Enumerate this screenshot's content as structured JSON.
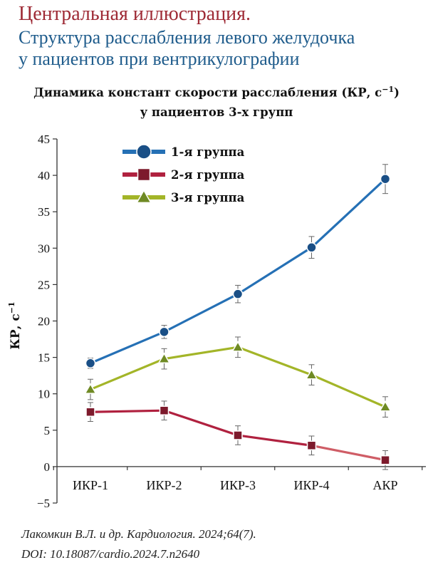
{
  "header": {
    "line1": "Центральная иллюстрация.",
    "line2a": "Структура расслабления левого желудочка",
    "line2b": "у пациентов при вентрикулографии"
  },
  "chart_data": {
    "type": "line",
    "title_line1": "Динамика констант скорости расслабления (КР, с",
    "title_sup": "−1",
    "title_tail": ")",
    "title_line2": "у пациентов 3-х групп",
    "ylabel": "КР, с",
    "ylabel_sup": "−1",
    "categories": [
      "ИКР-1",
      "ИКР-2",
      "ИКР-3",
      "ИКР-4",
      "АКР"
    ],
    "ylim": [
      -5,
      45
    ],
    "yticks": [
      -5,
      0,
      5,
      10,
      15,
      20,
      25,
      30,
      35,
      40,
      45
    ],
    "legend_position": "top-left",
    "grid": false,
    "series": [
      {
        "name": "1-я группа",
        "color": "#2570b5",
        "marker": "circle",
        "marker_color": "#1a4f86",
        "values": [
          14.2,
          18.5,
          23.7,
          30.1,
          39.5
        ],
        "errors": [
          0.7,
          0.9,
          1.2,
          1.5,
          2.0
        ]
      },
      {
        "name": "2-я группа",
        "color": "#b0213f",
        "marker": "square",
        "marker_color": "#7d1a2c",
        "values": [
          7.5,
          7.7,
          4.3,
          2.9,
          0.9
        ],
        "errors": [
          1.3,
          1.3,
          1.3,
          1.3,
          1.3
        ]
      },
      {
        "name": "3-я группа",
        "color": "#a3b528",
        "marker": "triangle",
        "marker_color": "#6f8a24",
        "values": [
          10.6,
          14.8,
          16.4,
          12.6,
          8.2
        ],
        "errors": [
          1.4,
          1.4,
          1.4,
          1.4,
          1.4
        ]
      }
    ]
  },
  "reference": {
    "line1": "Лакомкин В.Л. и др. Кардиология. 2024;64(7).",
    "line2": "DOI: 10.18087/cardio.2024.7.n2640"
  }
}
